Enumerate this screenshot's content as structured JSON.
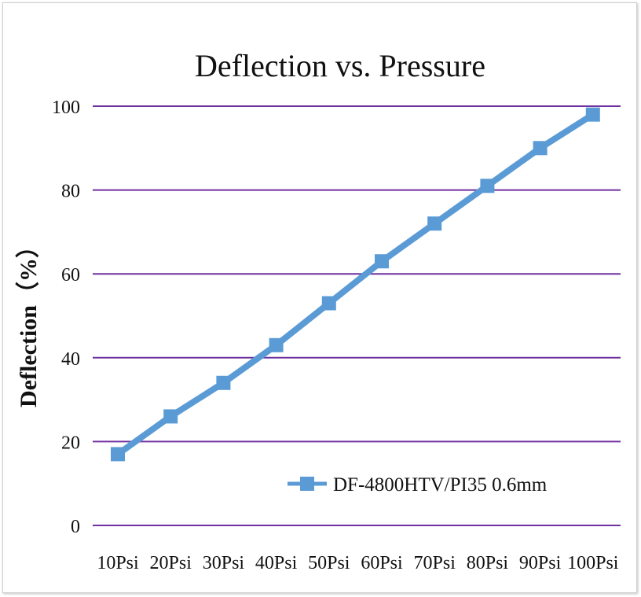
{
  "chart_data": {
    "type": "line",
    "title": "Deflection vs. Pressure",
    "xlabel": "",
    "ylabel": "Deflection（%）",
    "categories": [
      "10Psi",
      "20Psi",
      "30Psi",
      "40Psi",
      "50Psi",
      "60Psi",
      "70Psi",
      "80Psi",
      "90Psi",
      "100Psi"
    ],
    "series": [
      {
        "name": "DF-4800HTV/PI35 0.6mm",
        "values": [
          17,
          26,
          34,
          43,
          53,
          63,
          72,
          81,
          90,
          98
        ],
        "color": "#5b9bd5"
      }
    ],
    "ylim": [
      0,
      100
    ],
    "yticks": [
      "0",
      "20",
      "40",
      "60",
      "80",
      "100"
    ],
    "grid": true,
    "grid_color": "#7030a0",
    "legend": "lower-right"
  }
}
